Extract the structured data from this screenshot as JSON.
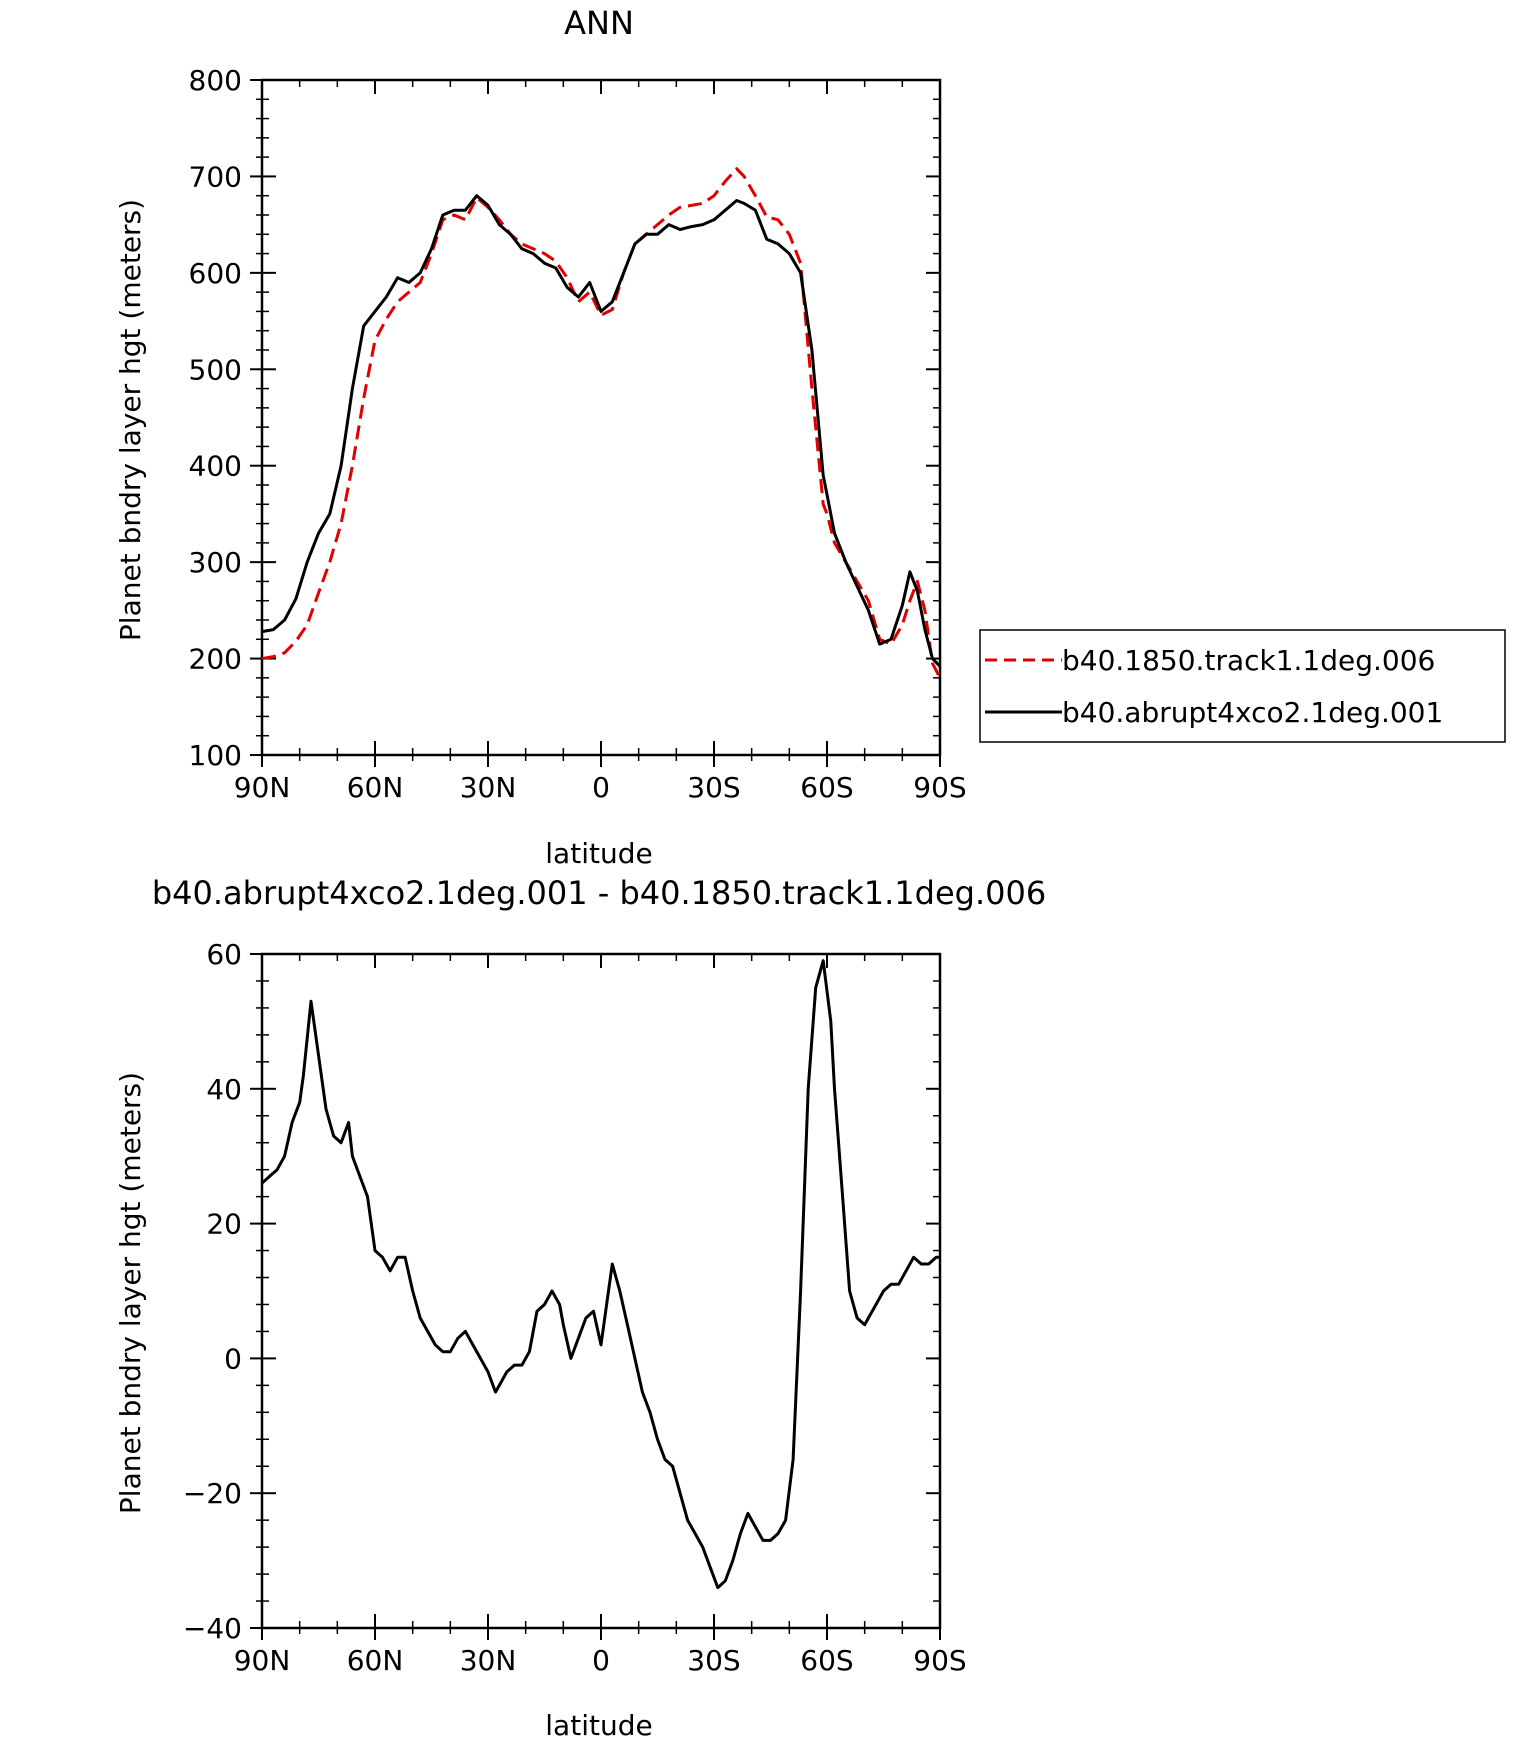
{
  "chart_data": [
    {
      "type": "line",
      "title": "ANN",
      "xlabel": "latitude",
      "ylabel": "Planet bndry layer hgt (meters)",
      "xlim": [
        90,
        -90
      ],
      "ylim": [
        100,
        800
      ],
      "xticks": [
        90,
        60,
        30,
        0,
        -30,
        -60,
        -90
      ],
      "xtick_labels": [
        "90N",
        "60N",
        "30N",
        "0",
        "30S",
        "60S",
        "90S"
      ],
      "yticks": [
        100,
        200,
        300,
        400,
        500,
        600,
        700,
        800
      ],
      "ytick_labels": [
        "100",
        "200",
        "300",
        "400",
        "500",
        "600",
        "700",
        "800"
      ],
      "legend_position": "right",
      "series": [
        {
          "name": "b40.1850.track1.1deg.006",
          "color": "#e00000",
          "dash": "dashed",
          "x": [
            90,
            87,
            84,
            81,
            78,
            75,
            72,
            69,
            66,
            63,
            60,
            57,
            54,
            51,
            48,
            45,
            42,
            39,
            36,
            33,
            30,
            27,
            24,
            21,
            18,
            15,
            12,
            9,
            6,
            3,
            0,
            -3,
            -6,
            -9,
            -12,
            -15,
            -18,
            -21,
            -24,
            -27,
            -30,
            -33,
            -36,
            -38,
            -41,
            -44,
            -47,
            -50,
            -53,
            -56,
            -59,
            -60,
            -62,
            -65,
            -68,
            -71,
            -74,
            -77,
            -80,
            -82,
            -84,
            -86,
            -88,
            -90
          ],
          "y": [
            200,
            202,
            206,
            218,
            235,
            268,
            300,
            340,
            400,
            470,
            530,
            552,
            570,
            580,
            590,
            620,
            655,
            660,
            655,
            678,
            668,
            655,
            640,
            630,
            625,
            620,
            612,
            595,
            570,
            580,
            556,
            562,
            600,
            630,
            640,
            650,
            660,
            668,
            670,
            672,
            680,
            695,
            708,
            700,
            680,
            658,
            655,
            640,
            610,
            480,
            360,
            350,
            320,
            300,
            280,
            260,
            220,
            215,
            235,
            260,
            280,
            250,
            195,
            180
          ]
        },
        {
          "name": "b40.abrupt4xco2.1deg.001",
          "color": "#000000",
          "dash": "solid",
          "x": [
            90,
            87,
            84,
            81,
            78,
            75,
            72,
            69,
            66,
            63,
            60,
            57,
            54,
            51,
            48,
            45,
            42,
            39,
            36,
            33,
            30,
            27,
            24,
            21,
            18,
            15,
            12,
            9,
            6,
            3,
            0,
            -3,
            -6,
            -9,
            -12,
            -15,
            -18,
            -21,
            -24,
            -27,
            -30,
            -33,
            -36,
            -38,
            -41,
            -44,
            -47,
            -50,
            -53,
            -56,
            -59,
            -60,
            -62,
            -65,
            -68,
            -71,
            -74,
            -77,
            -80,
            -82,
            -84,
            -86,
            -88,
            -90
          ],
          "y": [
            228,
            230,
            240,
            262,
            300,
            330,
            350,
            400,
            480,
            545,
            560,
            575,
            595,
            590,
            600,
            625,
            660,
            665,
            665,
            680,
            670,
            650,
            640,
            625,
            620,
            610,
            605,
            585,
            575,
            590,
            560,
            570,
            600,
            630,
            640,
            640,
            650,
            645,
            648,
            650,
            655,
            665,
            675,
            672,
            665,
            635,
            630,
            620,
            600,
            520,
            390,
            370,
            330,
            300,
            275,
            250,
            215,
            220,
            255,
            290,
            270,
            230,
            200,
            192
          ]
        }
      ]
    },
    {
      "type": "line",
      "title": "b40.abrupt4xco2.1deg.001 - b40.1850.track1.1deg.006",
      "xlabel": "latitude",
      "ylabel": "Planet bndry layer hgt (meters)",
      "xlim": [
        90,
        -90
      ],
      "ylim": [
        -40,
        60
      ],
      "xticks": [
        90,
        60,
        30,
        0,
        -30,
        -60,
        -90
      ],
      "xtick_labels": [
        "90N",
        "60N",
        "30N",
        "0",
        "30S",
        "60S",
        "90S"
      ],
      "yticks": [
        -40,
        -20,
        0,
        20,
        40,
        60
      ],
      "ytick_labels": [
        "−40",
        "−20",
        "0",
        "20",
        "40",
        "60"
      ],
      "series": [
        {
          "color": "#000000",
          "dash": "solid",
          "x": [
            90,
            88,
            86,
            84,
            82,
            80,
            79,
            77,
            75,
            73,
            71,
            69,
            67,
            66,
            64,
            62,
            60,
            58,
            56,
            54,
            52,
            50,
            48,
            46,
            44,
            42,
            40,
            38,
            36,
            34,
            32,
            30,
            28,
            26,
            25,
            23,
            21,
            19,
            17,
            15,
            13,
            11,
            10,
            8,
            6,
            4,
            2,
            0,
            -2,
            -3,
            -5,
            -7,
            -9,
            -11,
            -13,
            -15,
            -17,
            -19,
            -21,
            -23,
            -25,
            -27,
            -29,
            -31,
            -33,
            -35,
            -37,
            -39,
            -41,
            -43,
            -45,
            -47,
            -49,
            -51,
            -53,
            -55,
            -57,
            -59,
            -61,
            -62,
            -64,
            -66,
            -68,
            -70,
            -71,
            -73,
            -75,
            -77,
            -79,
            -81,
            -83,
            -85,
            -87,
            -89,
            -90
          ],
          "y": [
            26,
            27,
            28,
            30,
            35,
            38,
            42,
            53,
            45,
            37,
            33,
            32,
            35,
            30,
            27,
            24,
            16,
            15,
            13,
            15,
            15,
            10,
            6,
            4,
            2,
            1,
            1,
            3,
            4,
            2,
            0,
            -2,
            -5,
            -3,
            -2,
            -1,
            -1,
            1,
            7,
            8,
            10,
            8,
            5,
            0,
            3,
            6,
            7,
            2,
            10,
            14,
            10,
            5,
            0,
            -5,
            -8,
            -12,
            -15,
            -16,
            -20,
            -24,
            -26,
            -28,
            -31,
            -34,
            -33,
            -30,
            -26,
            -23,
            -25,
            -27,
            -27,
            -26,
            -24,
            -15,
            10,
            40,
            55,
            59,
            50,
            40,
            25,
            10,
            6,
            5,
            6,
            8,
            10,
            11,
            11,
            13,
            15,
            14,
            14,
            15,
            15
          ]
        }
      ]
    }
  ]
}
